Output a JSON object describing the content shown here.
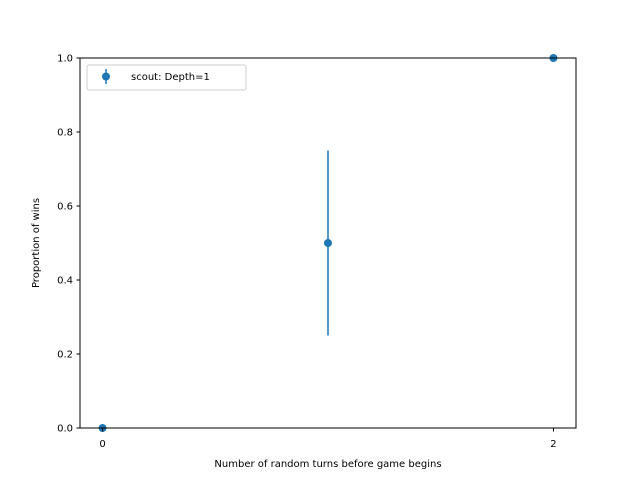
{
  "chart_data": {
    "type": "scatter",
    "title": "",
    "xlabel": "Number of random turns before game begins",
    "ylabel": "Proportion of wins",
    "xlim": [
      -0.1,
      2.1
    ],
    "ylim": [
      0,
      1
    ],
    "xticks": [
      0,
      2
    ],
    "xtick_labels": [
      "0",
      "2"
    ],
    "yticks": [
      0,
      0.2,
      0.4,
      0.6,
      0.8,
      1.0
    ],
    "ytick_labels": [
      "0.0",
      "0.2",
      "0.4",
      "0.6",
      "0.8",
      "1.0"
    ],
    "grid": false,
    "legend_position": "top-left",
    "series": [
      {
        "name": "scout: Depth=1",
        "color": "#1f77b4",
        "points": [
          {
            "x": 0,
            "y": 0.0,
            "yerr": 0.0
          },
          {
            "x": 1,
            "y": 0.5,
            "yerr": 0.25
          },
          {
            "x": 2,
            "y": 1.0,
            "yerr": 0.0
          }
        ]
      }
    ]
  }
}
